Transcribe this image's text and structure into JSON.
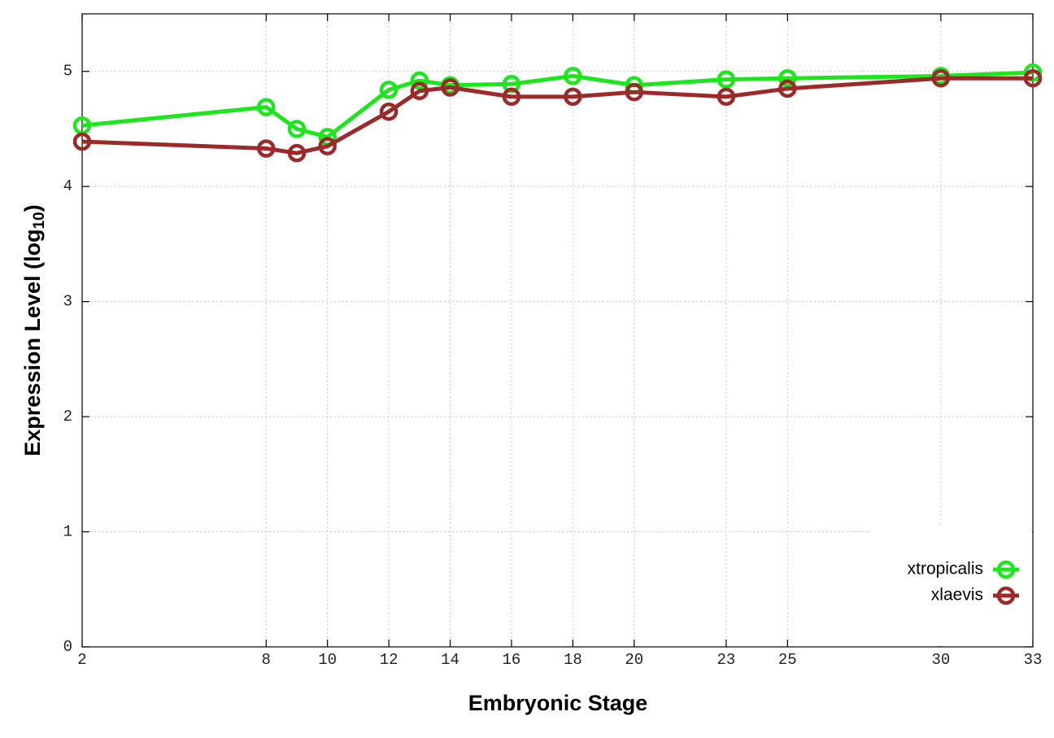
{
  "chart_data": {
    "type": "line",
    "x_label": "Embryonic Stage",
    "y_label": {
      "text": "Expression Level (log",
      "subscript": "10",
      "suffix": ")"
    },
    "x": [
      2,
      8,
      9,
      10,
      12,
      13,
      14,
      16,
      18,
      20,
      23,
      25,
      30,
      33
    ],
    "series": [
      {
        "name": "xtropicalis",
        "color": "#1ee61e",
        "values": [
          4.53,
          4.69,
          4.5,
          4.43,
          4.84,
          4.92,
          4.88,
          4.89,
          4.96,
          4.88,
          4.93,
          4.94,
          4.96,
          4.99
        ]
      },
      {
        "name": "xlaevis",
        "color": "#9b2a2a",
        "values": [
          4.39,
          4.33,
          4.29,
          4.35,
          4.65,
          4.83,
          4.86,
          4.78,
          4.78,
          4.82,
          4.78,
          4.85,
          4.94,
          4.94
        ]
      }
    ],
    "xlim": [
      2,
      33
    ],
    "xticks": [
      2,
      8,
      10,
      12,
      14,
      16,
      18,
      20,
      23,
      25,
      30,
      33
    ],
    "ylim": [
      0,
      5.5
    ],
    "yticks": [
      0,
      1,
      2,
      3,
      4,
      5
    ],
    "grid": true,
    "legend": "bottom-right"
  }
}
